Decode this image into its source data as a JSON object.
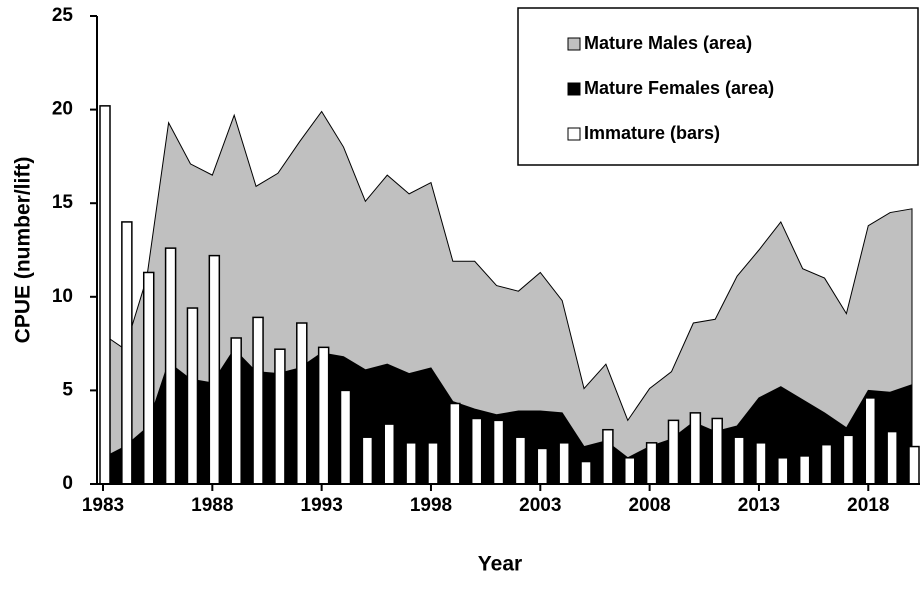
{
  "chart_data": {
    "type": "combo",
    "x_label": "Year",
    "y_label": "CPUE (number/lift)",
    "x": [
      1983,
      1984,
      1985,
      1986,
      1987,
      1988,
      1989,
      1990,
      1991,
      1992,
      1993,
      1994,
      1995,
      1996,
      1997,
      1998,
      1999,
      2000,
      2001,
      2002,
      2003,
      2004,
      2005,
      2006,
      2007,
      2008,
      2009,
      2010,
      2011,
      2012,
      2013,
      2014,
      2015,
      2016,
      2017,
      2018,
      2019,
      2020
    ],
    "xlim": [
      1983,
      2020
    ],
    "xticks": [
      1983,
      1988,
      1993,
      1998,
      2003,
      2008,
      2013,
      2018
    ],
    "ylim": [
      0,
      25
    ],
    "yticks": [
      0,
      5,
      10,
      15,
      20,
      25
    ],
    "legend": "top-right",
    "series": [
      {
        "name": "Mature Males (area)",
        "type": "area",
        "color": "#c0c0c0",
        "values": [
          6.6,
          5.2,
          8.0,
          12.8,
          11.5,
          11.1,
          12.5,
          9.9,
          10.7,
          12.1,
          12.9,
          11.2,
          9.0,
          10.1,
          9.6,
          9.9,
          7.5,
          7.9,
          6.9,
          6.4,
          7.4,
          6.0,
          3.1,
          4.1,
          2.0,
          3.1,
          3.6,
          5.3,
          6.0,
          8.0,
          7.9,
          8.8,
          7.0,
          7.2,
          6.1,
          8.8,
          9.6,
          9.4
        ]
      },
      {
        "name": "Mature Females (area)",
        "type": "area",
        "color": "#000000",
        "values": [
          1.4,
          2.0,
          3.0,
          6.5,
          5.6,
          5.4,
          7.2,
          6.0,
          5.9,
          6.2,
          7.0,
          6.8,
          6.1,
          6.4,
          5.9,
          6.2,
          4.4,
          4.0,
          3.7,
          3.9,
          3.9,
          3.8,
          2.0,
          2.3,
          1.4,
          2.0,
          2.4,
          3.3,
          2.8,
          3.1,
          4.6,
          5.2,
          4.5,
          3.8,
          3.0,
          5.0,
          4.9,
          5.3
        ]
      },
      {
        "name": "Immature (bars)",
        "type": "bar",
        "color": "#ffffff",
        "values": [
          20.2,
          14.0,
          11.3,
          12.6,
          9.4,
          12.2,
          7.8,
          8.9,
          7.2,
          8.6,
          7.3,
          5.0,
          2.5,
          3.2,
          2.2,
          2.2,
          4.3,
          3.5,
          3.4,
          2.5,
          1.9,
          2.2,
          1.2,
          2.9,
          1.4,
          2.2,
          3.4,
          3.8,
          3.5,
          2.5,
          2.2,
          1.4,
          1.5,
          2.1,
          2.6,
          4.6,
          2.8,
          2.0
        ]
      }
    ]
  }
}
